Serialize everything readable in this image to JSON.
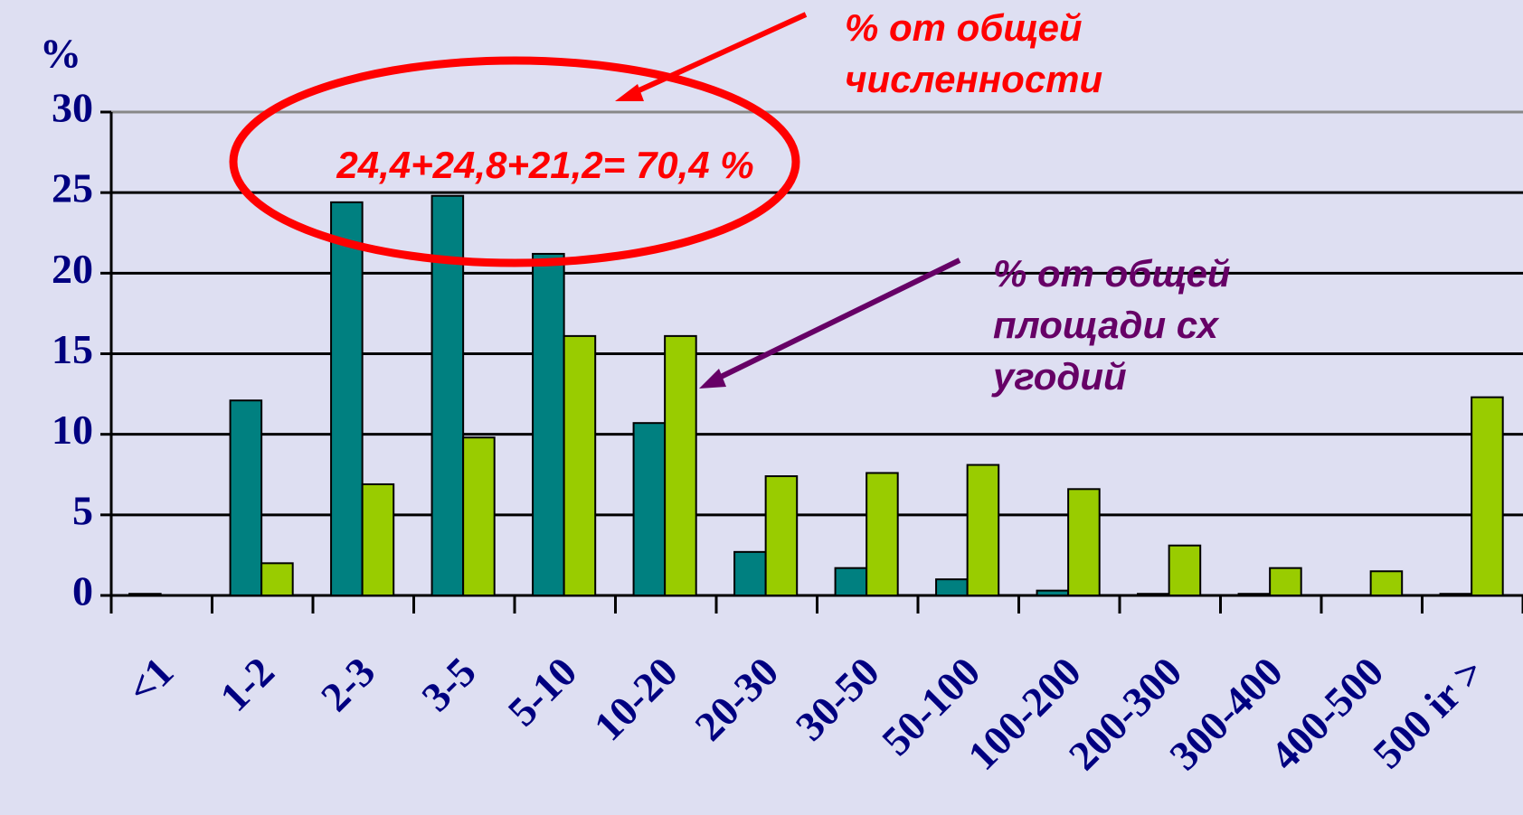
{
  "chart_data": {
    "type": "bar",
    "y_label": "%",
    "categories": [
      "<1",
      "1-2",
      "2-3",
      "3-5",
      "5-10",
      "10-20",
      "20-30",
      "30-50",
      "50-100",
      "100-200",
      "200-300",
      "300-400",
      "400-500",
      "500 ir >"
    ],
    "series": [
      {
        "color": "#008080",
        "values": [
          0.1,
          12.1,
          24.4,
          24.8,
          21.2,
          10.7,
          2.7,
          1.7,
          1.0,
          0.3,
          0.1,
          0.1,
          0,
          0.1
        ]
      },
      {
        "color": "#99cc00",
        "values": [
          0,
          2.0,
          6.9,
          9.8,
          16.1,
          16.1,
          7.4,
          7.6,
          8.1,
          6.6,
          3.1,
          1.7,
          1.5,
          12.3
        ]
      }
    ],
    "ylim": [
      0,
      30
    ],
    "yticks": [
      0,
      5,
      10,
      15,
      20,
      25,
      30
    ],
    "grid": true,
    "annotations": [
      {
        "lines": [
          "% от общей",
          "численности"
        ],
        "color": "#ff0000"
      },
      {
        "lines": [
          "% от общей",
          "площади сх",
          "угодий"
        ],
        "color": "#660066"
      },
      {
        "text": "24,4+24,8+21,2= 70,4 %",
        "color": "#ff0000"
      }
    ]
  }
}
